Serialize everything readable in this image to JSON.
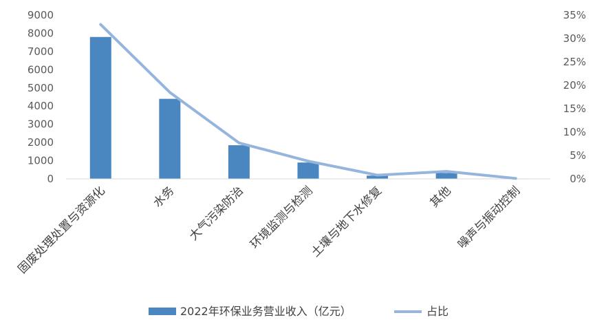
{
  "chart_data": {
    "type": "bar",
    "categories": [
      "固废处理处置与资源化",
      "水务",
      "大气污染防治",
      "环境监测与检测",
      "土壤与地下水修复",
      "其他",
      "噪声与振动控制"
    ],
    "series": [
      {
        "name": "2022年环保业务营业收入（亿元）",
        "type": "bar",
        "axis": "left",
        "color": "#4a86c0",
        "values": [
          7800,
          4400,
          1850,
          900,
          180,
          320,
          20
        ]
      },
      {
        "name": "占比",
        "type": "line",
        "axis": "right",
        "color": "#95b5dc",
        "values": [
          0.33,
          0.185,
          0.077,
          0.038,
          0.008,
          0.016,
          0.001
        ]
      }
    ],
    "y_left": {
      "min": 0,
      "max": 9000,
      "step": 1000,
      "ticks": [
        "0",
        "1000",
        "2000",
        "3000",
        "4000",
        "5000",
        "6000",
        "7000",
        "8000",
        "9000"
      ]
    },
    "y_right": {
      "min": 0,
      "max": 0.35,
      "step": 0.05,
      "ticks": [
        "0%",
        "5%",
        "10%",
        "15%",
        "20%",
        "25%",
        "30%",
        "35%"
      ]
    },
    "grid": false,
    "legend": "bottom",
    "title": "",
    "xlabel": "",
    "ylabel": ""
  }
}
